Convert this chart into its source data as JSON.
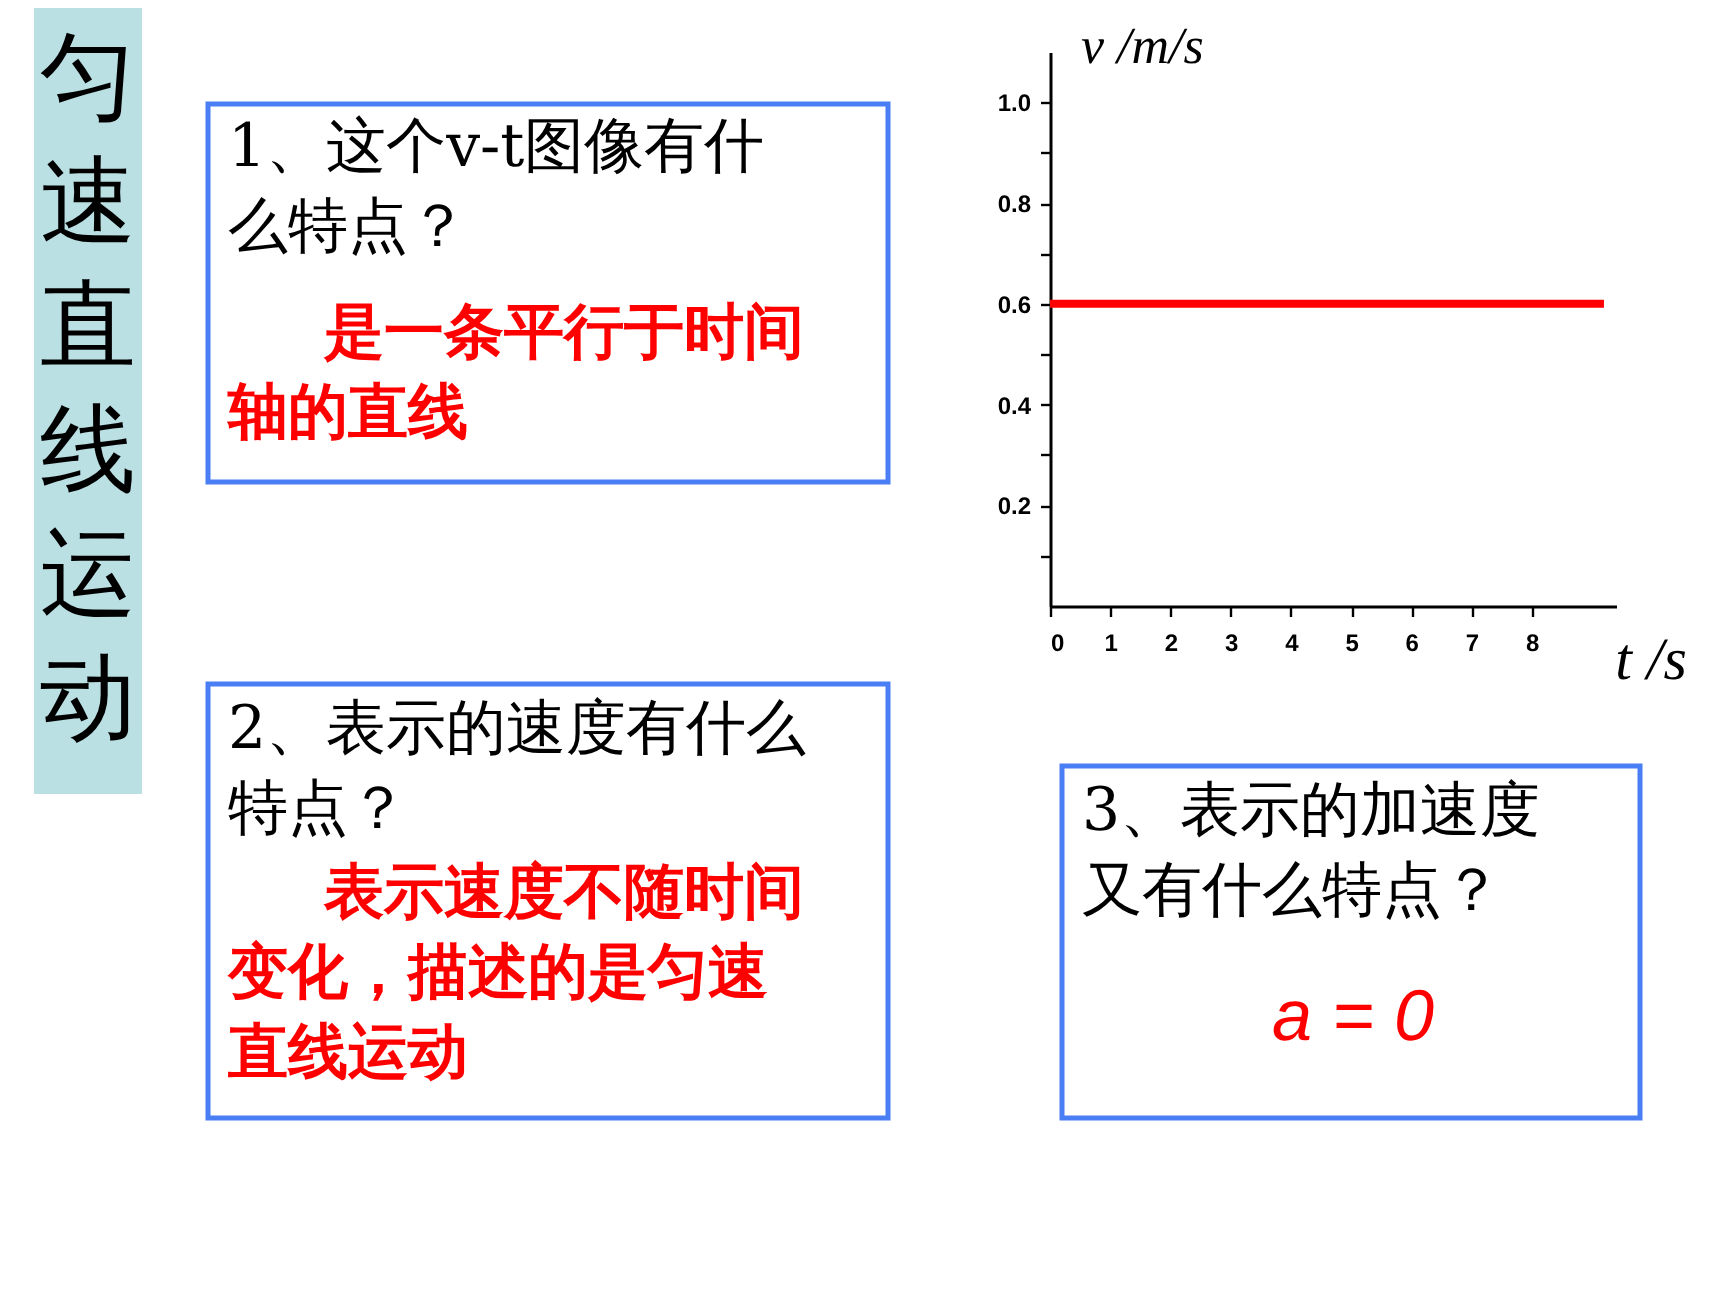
{
  "chart_data": {
    "type": "line",
    "title": "匀速直线运动",
    "xlabel": "t /s",
    "ylabel": "v /m/s",
    "x": [
      0,
      9.2
    ],
    "series": [
      {
        "color": "#ff0000",
        "values": [
          0.6,
          0.6
        ]
      }
    ],
    "xlim": [
      0,
      9.4
    ],
    "ylim": [
      0,
      1.1
    ],
    "xticks": [
      0,
      1,
      2,
      3,
      4,
      5,
      6,
      7,
      8
    ],
    "yticks": [
      {
        "value": 0.1,
        "label": null
      },
      0.2,
      {
        "value": 0.3,
        "label": null
      },
      0.4,
      {
        "value": 0.5,
        "label": null
      },
      0.6,
      {
        "value": 0.7,
        "label": null
      },
      0.8,
      {
        "value": 0.9,
        "label": null
      },
      {
        "value": 1,
        "label": "1.0"
      }
    ],
    "line_style": "solid",
    "annotations": [
      "1、这个v-t图像有什么特点？",
      "是一条平行于时间轴的直线",
      "2、表示的速度有什么特点？",
      "表示速度不随时间变化，描述的是匀速直线运动",
      "3、表示的加速度又有什么特点？",
      "a = 0"
    ]
  }
}
